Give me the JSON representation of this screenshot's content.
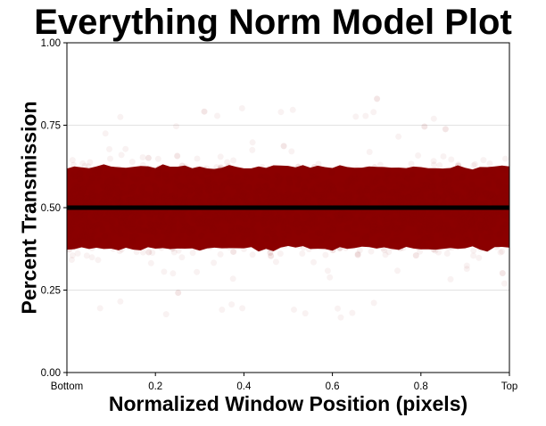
{
  "chart_data": {
    "type": "scatter",
    "title": "Everything Norm Model Plot",
    "xlabel": "Normalized Window Position (pixels)",
    "ylabel": "Percent Transmission",
    "xlim": [
      0,
      1
    ],
    "ylim": [
      0,
      1
    ],
    "x_ticks": [
      {
        "value": 0,
        "label": "Bottom"
      },
      {
        "value": 0.2,
        "label": "0.2"
      },
      {
        "value": 0.4,
        "label": "0.4"
      },
      {
        "value": 0.6,
        "label": "0.6"
      },
      {
        "value": 0.8,
        "label": "0.8"
      },
      {
        "value": 1,
        "label": "Top"
      }
    ],
    "y_ticks": [
      {
        "value": 0,
        "label": "0.00"
      },
      {
        "value": 0.25,
        "label": "0.25"
      },
      {
        "value": 0.5,
        "label": "0.50"
      },
      {
        "value": 0.75,
        "label": "0.75"
      },
      {
        "value": 1,
        "label": "1.00"
      }
    ],
    "grid": "horizontal",
    "legend": "none",
    "series": [
      {
        "kind": "point-cloud",
        "color": "#8b0000",
        "dense_band": [
          0.36,
          0.64
        ],
        "sparse_range": [
          0.2,
          0.87
        ],
        "opacity": 0.05
      },
      {
        "kind": "line",
        "color": "#000000",
        "x": [
          0,
          1
        ],
        "y": [
          0.5,
          0.5
        ]
      }
    ]
  }
}
